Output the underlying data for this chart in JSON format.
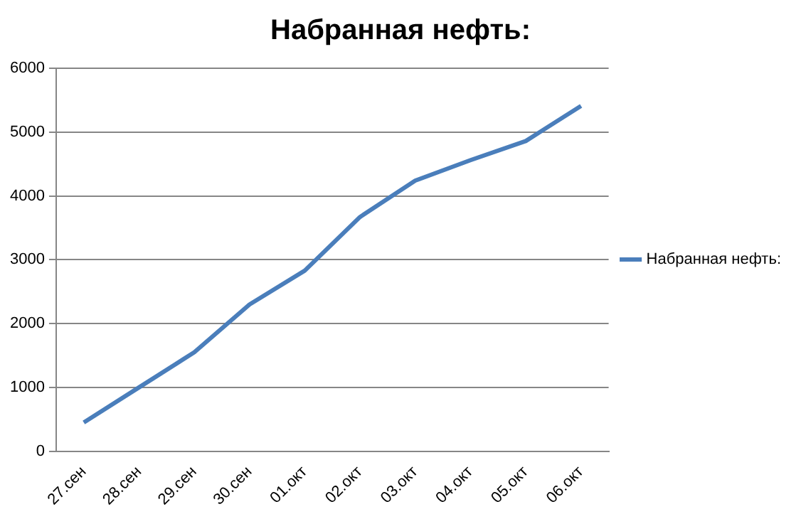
{
  "chart_data": {
    "type": "line",
    "title": "Набранная нефть:",
    "categories": [
      "27.сен",
      "28.сен",
      "29.сен",
      "30.сен",
      "01.окт",
      "02.окт",
      "03.окт",
      "04.окт",
      "05.окт",
      "06.окт"
    ],
    "series": [
      {
        "name": "Набранная нефть:",
        "color": "#4a7ebb",
        "values": [
          450,
          1000,
          1550,
          2300,
          2830,
          3670,
          4240,
          4560,
          4860,
          5410
        ]
      }
    ],
    "ylim": [
      0,
      6000
    ],
    "yticks": [
      0,
      1000,
      2000,
      3000,
      4000,
      5000,
      6000
    ],
    "grid": "y",
    "legend": "right",
    "marker": "none",
    "line_style": "solid"
  }
}
